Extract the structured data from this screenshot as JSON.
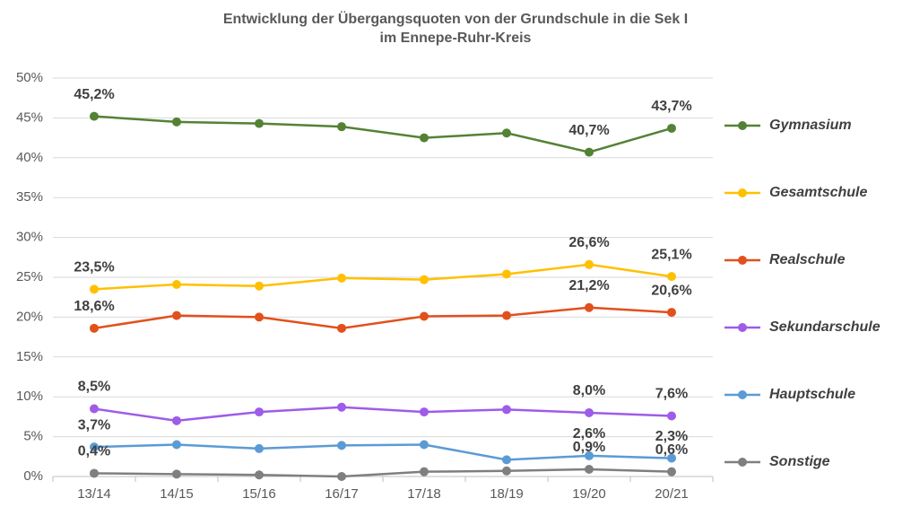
{
  "chart_data": {
    "type": "line",
    "title": [
      "Entwicklung der Übergangsquoten von der Grundschule in die Sek I",
      "im Ennepe-Ruhr-Kreis"
    ],
    "categories": [
      "13/14",
      "14/15",
      "15/16",
      "16/17",
      "17/18",
      "18/19",
      "19/20",
      "20/21"
    ],
    "ylim": [
      0,
      50
    ],
    "yticks": [
      {
        "value": 0,
        "label": "0%"
      },
      {
        "value": 5,
        "label": "5%"
      },
      {
        "value": 10,
        "label": "10%"
      },
      {
        "value": 15,
        "label": "15%"
      },
      {
        "value": 20,
        "label": "20%"
      },
      {
        "value": 25,
        "label": "25%"
      },
      {
        "value": 30,
        "label": "30%"
      },
      {
        "value": 35,
        "label": "35%"
      },
      {
        "value": 40,
        "label": "40%"
      },
      {
        "value": 45,
        "label": "45%"
      },
      {
        "value": 50,
        "label": "50%"
      }
    ],
    "grid": true,
    "legend": "right",
    "series": [
      {
        "name": "Gymnasium",
        "color": "#548235",
        "values": [
          45.2,
          44.5,
          44.3,
          43.9,
          42.5,
          43.1,
          40.7,
          43.7
        ],
        "value_labels": [
          "45,2%",
          null,
          null,
          null,
          null,
          null,
          "40,7%",
          "43,7%"
        ]
      },
      {
        "name": "Gesamtschule",
        "color": "#ffc000",
        "values": [
          23.5,
          24.1,
          23.9,
          24.9,
          24.7,
          25.4,
          26.6,
          25.1
        ],
        "value_labels": [
          "23,5%",
          null,
          null,
          null,
          null,
          null,
          "26,6%",
          "25,1%"
        ]
      },
      {
        "name": "Realschule",
        "color": "#e2501c",
        "values": [
          18.6,
          20.2,
          20.0,
          18.6,
          20.1,
          20.2,
          21.2,
          20.6
        ],
        "value_labels": [
          "18,6%",
          null,
          null,
          null,
          null,
          null,
          "21,2%",
          "20,6%"
        ]
      },
      {
        "name": "Sekundarschule",
        "color": "#9e5ce8",
        "values": [
          8.5,
          7.0,
          8.1,
          8.7,
          8.1,
          8.4,
          8.0,
          7.6
        ],
        "value_labels": [
          "8,5%",
          null,
          null,
          null,
          null,
          null,
          "8,0%",
          "7,6%"
        ]
      },
      {
        "name": "Hauptschule",
        "color": "#5b9bd5",
        "values": [
          3.7,
          4.0,
          3.5,
          3.9,
          4.0,
          2.1,
          2.6,
          2.3
        ],
        "value_labels": [
          "3,7%",
          null,
          null,
          null,
          null,
          null,
          "2,6%",
          "2,3%"
        ]
      },
      {
        "name": "Sonstige",
        "color": "#7f7f7f",
        "values": [
          0.4,
          0.3,
          0.2,
          0.0,
          0.6,
          0.7,
          0.9,
          0.6
        ],
        "value_labels": [
          "0,4%",
          null,
          null,
          null,
          null,
          null,
          "0,9%",
          "0,6%"
        ]
      }
    ]
  }
}
